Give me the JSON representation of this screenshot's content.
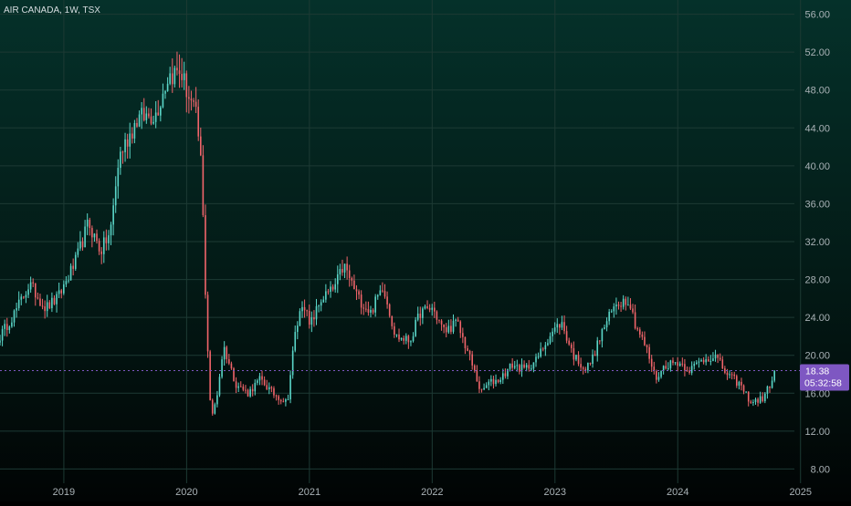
{
  "chart_data": {
    "type": "candlestick",
    "title": "AIR CANADA, 1W, TSX",
    "ylim": [
      6.5,
      57.5
    ],
    "y_ticks": [
      8,
      12,
      16,
      20,
      24,
      28,
      32,
      36,
      40,
      44,
      48,
      52,
      56
    ],
    "y_tick_labels": [
      "8.00",
      "12.00",
      "16.00",
      "20.00",
      "24.00",
      "28.00",
      "32.00",
      "36.00",
      "40.00",
      "44.00",
      "48.00",
      "52.00",
      "56.00"
    ],
    "x_tick_labels": [
      "2019",
      "2020",
      "2021",
      "2022",
      "2023",
      "2024",
      "2025"
    ],
    "x_tick_years": [
      2019,
      2020,
      2021,
      2022,
      2023,
      2024,
      2025
    ],
    "xlim_years": [
      2018.48,
      2024.95
    ],
    "grid": true,
    "last_price": 18.38,
    "last_price_label": "18.38",
    "countdown_label": "05:32:58",
    "colors": {
      "up": "#26a69a",
      "down": "#ef5350",
      "up_candle": "#5ad6c8",
      "down_candle": "#f0646a",
      "price_tag": "#7e57c2",
      "grid": "#1d3a34",
      "axis_text": "#a9b2b6"
    },
    "anchors": {
      "dates": [
        2018.48,
        2018.6,
        2018.72,
        2018.85,
        2018.95,
        2019.1,
        2019.2,
        2019.3,
        2019.38,
        2019.45,
        2019.6,
        2019.75,
        2019.85,
        2019.95,
        2020.0,
        2020.08,
        2020.12,
        2020.16,
        2020.2,
        2020.25,
        2020.3,
        2020.4,
        2020.5,
        2020.6,
        2020.7,
        2020.82,
        2020.88,
        2020.95,
        2021.0,
        2021.1,
        2021.2,
        2021.28,
        2021.4,
        2021.5,
        2021.6,
        2021.7,
        2021.82,
        2021.9,
        2022.0,
        2022.1,
        2022.2,
        2022.3,
        2022.4,
        2022.45,
        2022.55,
        2022.65,
        2022.75,
        2022.85,
        2022.95,
        2023.05,
        2023.15,
        2023.25,
        2023.3,
        2023.4,
        2023.5,
        2023.6,
        2023.65,
        2023.75,
        2023.82,
        2023.9,
        2024.0,
        2024.1,
        2024.2,
        2024.3,
        2024.4,
        2024.5,
        2024.6,
        2024.7,
        2024.8
      ],
      "closes": [
        22,
        24.5,
        27.5,
        25,
        26,
        30,
        34,
        31,
        33,
        41,
        45,
        45.5,
        49.5,
        50,
        48,
        45,
        40,
        24,
        13,
        16,
        21,
        17,
        16,
        17.5,
        16,
        15,
        22,
        26,
        23,
        26,
        27,
        29.5,
        26,
        24.5,
        27.5,
        22,
        21.5,
        24.5,
        25,
        22.5,
        23.5,
        20,
        16,
        17,
        17.5,
        19,
        18.5,
        19.5,
        22,
        23.5,
        20,
        18.5,
        19.5,
        23,
        25.5,
        26,
        23.5,
        20.5,
        17.5,
        19,
        19.3,
        18.5,
        19.5,
        20,
        18,
        17,
        15,
        15.5,
        18.38
      ]
    }
  }
}
